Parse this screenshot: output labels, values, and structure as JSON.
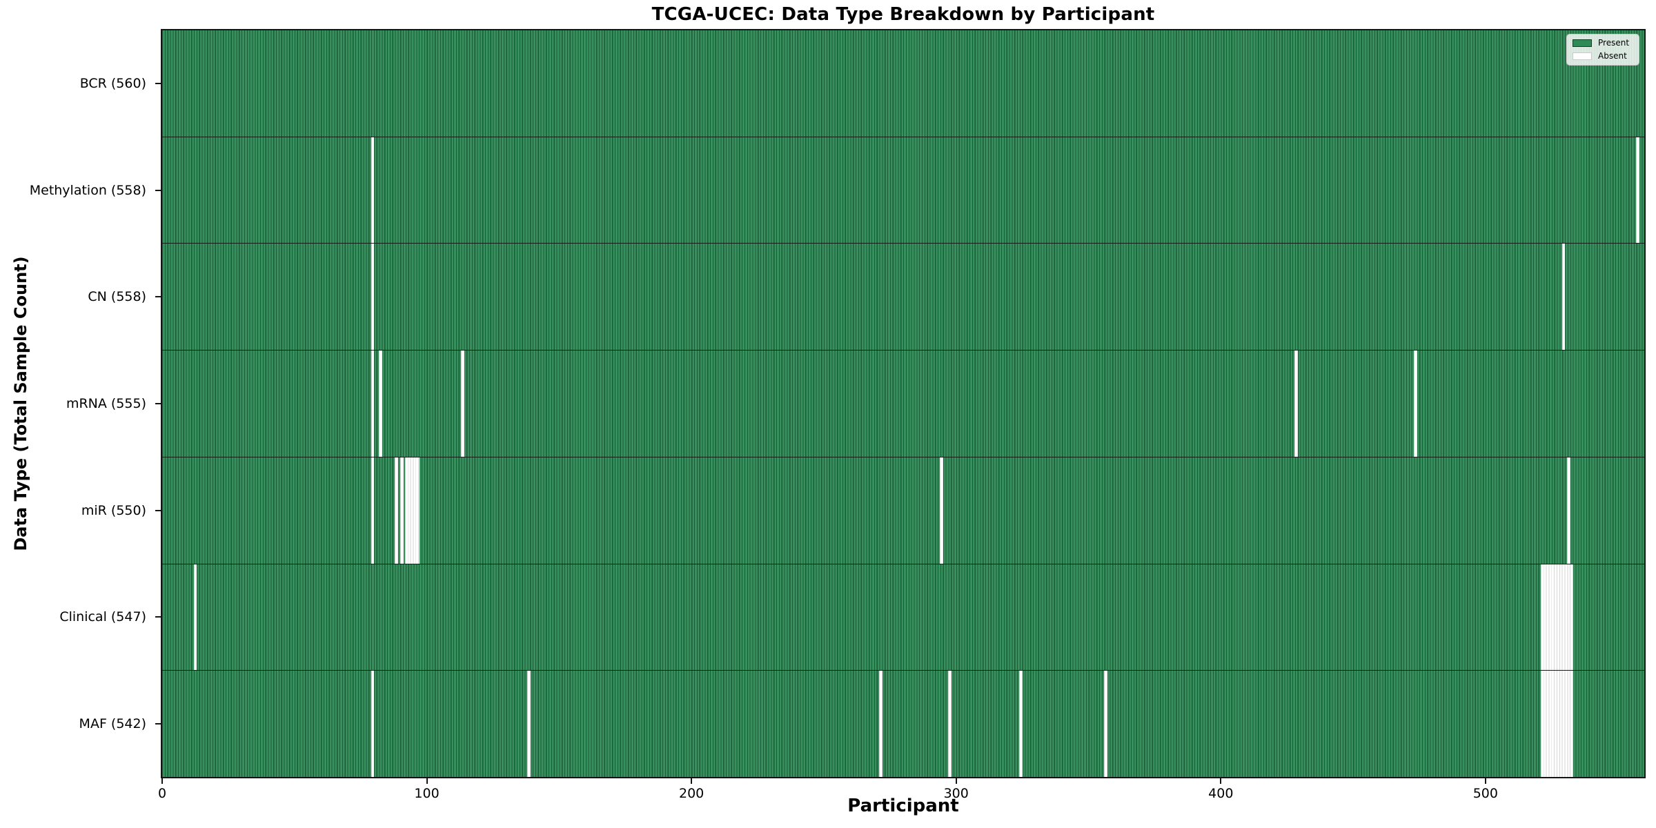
{
  "chart_data": {
    "type": "heatmap",
    "subtype": "presence-absence matrix rendered as stacked horizontal bar rows (1 bar per participant)",
    "title": "TCGA-UCEC: Data Type Breakdown by Participant",
    "xlabel": "Participant",
    "ylabel": "Data Type (Total Sample Count)",
    "x_ticks": [
      0,
      100,
      200,
      300,
      400,
      500
    ],
    "x_tick_labels": [
      "0",
      "100",
      "200",
      "300",
      "400",
      "500"
    ],
    "x_range": [
      0,
      560
    ],
    "total_participants": 560,
    "grid": false,
    "colors": {
      "present": "#2e8b57",
      "absent": "#ffffff",
      "bar_edge": "#1a5c36",
      "absent_edge": "#d6d6d6",
      "spine": "#151515"
    },
    "legend": {
      "position": "upper-right",
      "entries": [
        {
          "label": "Present",
          "color": "#2e8b57"
        },
        {
          "label": "Absent",
          "color": "#ffffff"
        }
      ]
    },
    "rows": [
      {
        "data_type": "BCR",
        "label": "BCR (560)",
        "present_count": 560,
        "absent_count": 0,
        "absent_runs": []
      },
      {
        "data_type": "Methylation",
        "label": "Methylation (558)",
        "present_count": 558,
        "absent_count": 2,
        "absent_runs": [
          [
            79,
            1
          ],
          [
            557,
            1
          ]
        ]
      },
      {
        "data_type": "CN",
        "label": "CN (558)",
        "present_count": 558,
        "absent_count": 2,
        "absent_runs": [
          [
            79,
            1
          ],
          [
            529,
            1
          ]
        ]
      },
      {
        "data_type": "mRNA",
        "label": "mRNA (555)",
        "present_count": 555,
        "absent_count": 5,
        "absent_runs": [
          [
            79,
            1
          ],
          [
            82,
            1
          ],
          [
            113,
            1
          ],
          [
            428,
            1
          ],
          [
            473,
            1
          ]
        ]
      },
      {
        "data_type": "miR",
        "label": "miR (550)",
        "present_count": 550,
        "absent_count": 10,
        "absent_runs": [
          [
            79,
            1
          ],
          [
            88,
            1
          ],
          [
            90,
            1
          ],
          [
            92,
            5
          ],
          [
            294,
            1
          ],
          [
            531,
            1
          ]
        ]
      },
      {
        "data_type": "Clinical",
        "label": "Clinical (547)",
        "present_count": 547,
        "absent_count": 13,
        "absent_runs": [
          [
            12,
            1
          ],
          [
            521,
            12
          ]
        ]
      },
      {
        "data_type": "MAF",
        "label": "MAF (542)",
        "present_count": 542,
        "absent_count": 18,
        "absent_runs": [
          [
            79,
            1
          ],
          [
            138,
            1
          ],
          [
            271,
            1
          ],
          [
            297,
            1
          ],
          [
            324,
            1
          ],
          [
            356,
            1
          ],
          [
            521,
            12
          ]
        ]
      }
    ]
  }
}
